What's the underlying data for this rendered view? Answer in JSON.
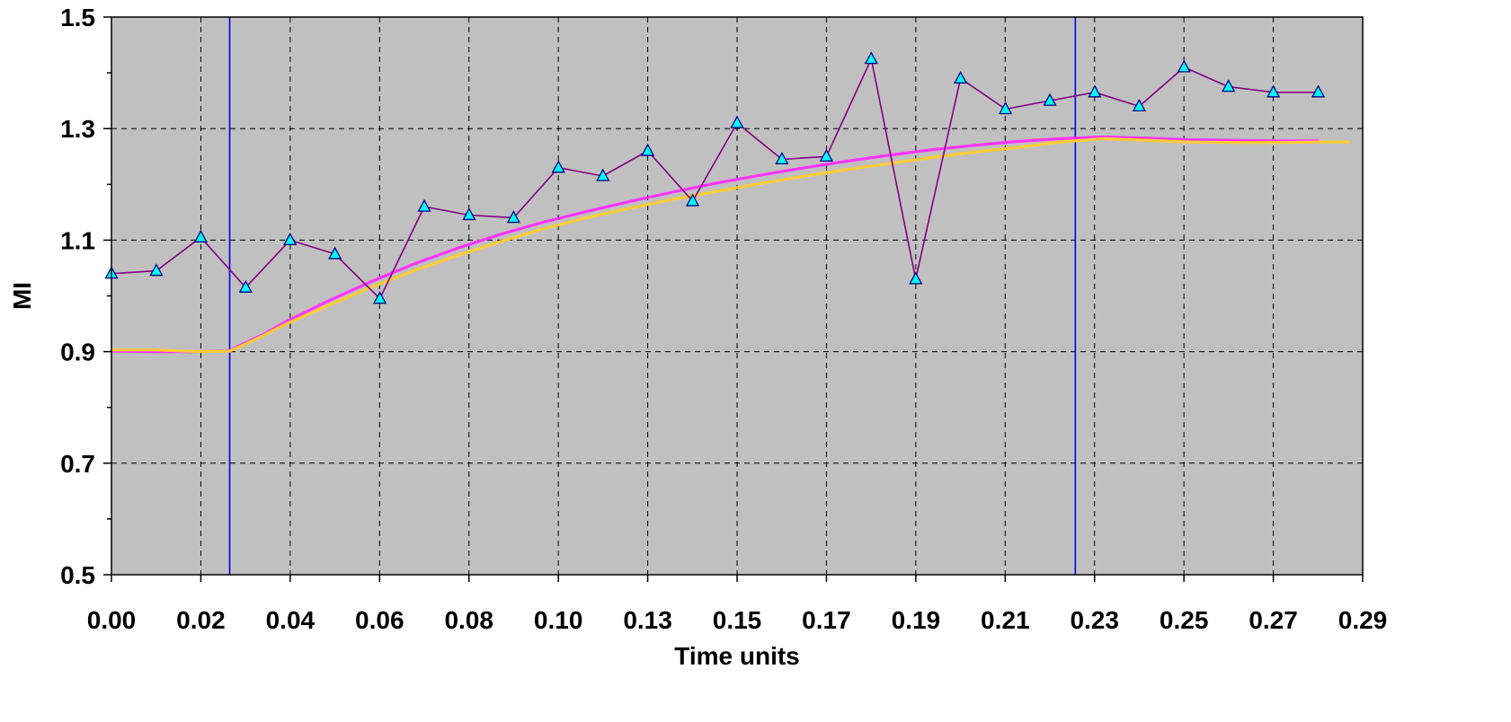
{
  "chart_data": {
    "type": "line",
    "title": "",
    "xlabel": "Time units",
    "ylabel": "MI",
    "xlim": [
      0,
      0.29
    ],
    "ylim": [
      0.5,
      1.5
    ],
    "x_tick_labels": [
      "0.00",
      "0.02",
      "0.04",
      "0.06",
      "0.08",
      "0.10",
      "0.13",
      "0.15",
      "0.17",
      "0.19",
      "0.21",
      "0.23",
      "0.25",
      "0.27",
      "0.29"
    ],
    "y_major_ticks": [
      0.5,
      0.7,
      0.9,
      1.1,
      1.3,
      1.5
    ],
    "y_minor_ticks": [
      0.6,
      0.8,
      1.0,
      1.2,
      1.4
    ],
    "grid": true,
    "plot_background": "#C0C0C0",
    "vertical_markers": [
      0.0274,
      0.2234
    ],
    "series": [
      {
        "color": "#800080",
        "marker": "triangle",
        "marker_color": "#00FFFF",
        "x": [
          0.0,
          0.0104,
          0.0207,
          0.0311,
          0.0414,
          0.0518,
          0.0622,
          0.0725,
          0.0829,
          0.0932,
          0.1036,
          0.1139,
          0.1243,
          0.1347,
          0.145,
          0.1554,
          0.1657,
          0.1761,
          0.1864,
          0.1968,
          0.2072,
          0.2175,
          0.2279,
          0.2382,
          0.2486,
          0.2589,
          0.2693,
          0.2797
        ],
        "y": [
          1.04,
          1.045,
          1.105,
          1.015,
          1.1,
          1.075,
          0.995,
          1.16,
          1.145,
          1.14,
          1.23,
          1.215,
          1.26,
          1.17,
          1.31,
          1.245,
          1.25,
          1.425,
          1.03,
          1.39,
          1.335,
          1.35,
          1.365,
          1.34,
          1.41,
          1.375,
          1.365,
          1.365
        ]
      },
      {
        "color": "#FF33FF",
        "x": [
          0.0,
          0.01,
          0.02,
          0.0274,
          0.03,
          0.035,
          0.04,
          0.05,
          0.06,
          0.07,
          0.08,
          0.09,
          0.1,
          0.11,
          0.12,
          0.13,
          0.14,
          0.15,
          0.16,
          0.17,
          0.18,
          0.19,
          0.2,
          0.21,
          0.22,
          0.23,
          0.24,
          0.25,
          0.26,
          0.27,
          0.28
        ],
        "y": [
          0.901,
          0.9,
          0.9,
          0.902,
          0.912,
          0.93,
          0.952,
          0.99,
          1.025,
          1.057,
          1.085,
          1.11,
          1.132,
          1.151,
          1.169,
          1.186,
          1.202,
          1.216,
          1.229,
          1.241,
          1.252,
          1.262,
          1.27,
          1.277,
          1.282,
          1.285,
          1.283,
          1.28,
          1.279,
          1.278,
          1.278
        ]
      },
      {
        "color": "#FFCC33",
        "x": [
          0.0,
          0.01,
          0.02,
          0.0274,
          0.03,
          0.035,
          0.04,
          0.05,
          0.06,
          0.07,
          0.08,
          0.09,
          0.1,
          0.11,
          0.12,
          0.13,
          0.14,
          0.15,
          0.16,
          0.17,
          0.18,
          0.19,
          0.2,
          0.21,
          0.22,
          0.23,
          0.24,
          0.25,
          0.26,
          0.27,
          0.28,
          0.287
        ],
        "y": [
          0.903,
          0.903,
          0.9,
          0.901,
          0.91,
          0.928,
          0.948,
          0.982,
          1.015,
          1.045,
          1.072,
          1.097,
          1.12,
          1.14,
          1.157,
          1.173,
          1.187,
          1.201,
          1.214,
          1.226,
          1.237,
          1.248,
          1.258,
          1.266,
          1.276,
          1.282,
          1.279,
          1.276,
          1.275,
          1.275,
          1.276,
          1.276
        ]
      }
    ]
  }
}
